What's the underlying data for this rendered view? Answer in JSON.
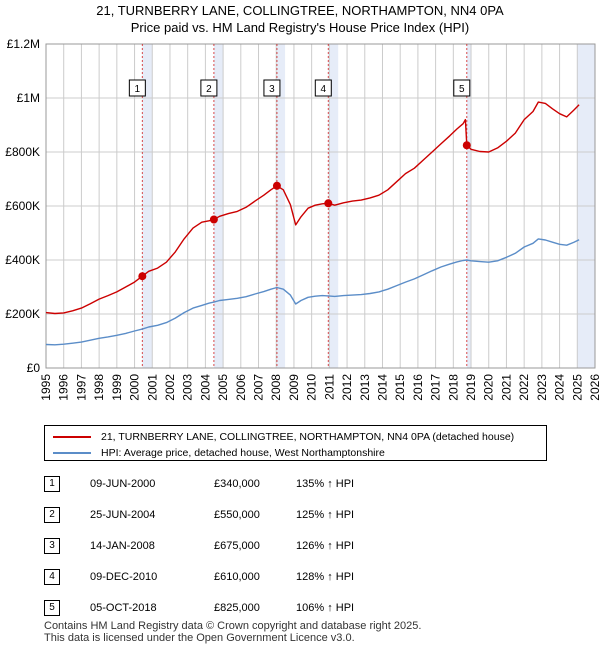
{
  "title_line1": "21, TURNBERRY LANE, COLLINGTREE, NORTHAMPTON, NN4 0PA",
  "title_line2": "Price paid vs. HM Land Registry's House Price Index (HPI)",
  "colors": {
    "property": "#cc0000",
    "hpi": "#5b8dc8",
    "band": "#e6ecf8",
    "grid": "#cccccc",
    "marker": "#cc0000"
  },
  "chart_data": {
    "type": "line",
    "title": "Price paid vs. HM Land Registry's House Price Index (HPI)",
    "xlim": [
      1995,
      2026
    ],
    "ylim": [
      0,
      1200000
    ],
    "x_ticks": [
      "1995",
      "1996",
      "1997",
      "1998",
      "1999",
      "2000",
      "2001",
      "2002",
      "2003",
      "2004",
      "2005",
      "2006",
      "2007",
      "2008",
      "2009",
      "2010",
      "2011",
      "2012",
      "2013",
      "2014",
      "2015",
      "2016",
      "2017",
      "2018",
      "2019",
      "2020",
      "2021",
      "2022",
      "2023",
      "2024",
      "2025",
      "2026"
    ],
    "y_ticks": [
      {
        "value": 0,
        "label": "£0"
      },
      {
        "value": 200000,
        "label": "£200K"
      },
      {
        "value": 400000,
        "label": "£400K"
      },
      {
        "value": 600000,
        "label": "£600K"
      },
      {
        "value": 800000,
        "label": "£800K"
      },
      {
        "value": 1000000,
        "label": "£1M"
      },
      {
        "value": 1200000,
        "label": "£1.2M"
      }
    ],
    "shaded_bands": [
      [
        2000.44,
        2001.0
      ],
      [
        2004.48,
        2005.0
      ],
      [
        2008.04,
        2008.5
      ],
      [
        2010.94,
        2011.5
      ],
      [
        2018.76,
        2019.0
      ],
      [
        2025.0,
        2026.0
      ]
    ],
    "series": [
      {
        "name": "21, TURNBERRY LANE, COLLINGTREE, NORTHAMPTON, NN4 0PA (detached house)",
        "color": "#cc0000",
        "points": [
          [
            1995.0,
            205000
          ],
          [
            1995.5,
            202000
          ],
          [
            1996.0,
            204000
          ],
          [
            1996.5,
            212000
          ],
          [
            1997.0,
            222000
          ],
          [
            1997.5,
            238000
          ],
          [
            1998.0,
            255000
          ],
          [
            1998.5,
            268000
          ],
          [
            1999.0,
            282000
          ],
          [
            1999.5,
            300000
          ],
          [
            2000.0,
            318000
          ],
          [
            2000.44,
            340000
          ],
          [
            2000.8,
            358000
          ],
          [
            2001.3,
            370000
          ],
          [
            2001.8,
            392000
          ],
          [
            2002.3,
            430000
          ],
          [
            2002.8,
            478000
          ],
          [
            2003.3,
            518000
          ],
          [
            2003.8,
            540000
          ],
          [
            2004.2,
            545000
          ],
          [
            2004.48,
            550000
          ],
          [
            2004.8,
            562000
          ],
          [
            2005.3,
            572000
          ],
          [
            2005.8,
            580000
          ],
          [
            2006.3,
            595000
          ],
          [
            2006.8,
            618000
          ],
          [
            2007.3,
            640000
          ],
          [
            2007.7,
            660000
          ],
          [
            2008.04,
            675000
          ],
          [
            2008.4,
            660000
          ],
          [
            2008.8,
            605000
          ],
          [
            2009.1,
            530000
          ],
          [
            2009.4,
            560000
          ],
          [
            2009.8,
            592000
          ],
          [
            2010.2,
            603000
          ],
          [
            2010.6,
            608000
          ],
          [
            2010.94,
            610000
          ],
          [
            2011.3,
            603000
          ],
          [
            2011.8,
            612000
          ],
          [
            2012.3,
            618000
          ],
          [
            2012.8,
            622000
          ],
          [
            2013.3,
            630000
          ],
          [
            2013.8,
            640000
          ],
          [
            2014.3,
            660000
          ],
          [
            2014.8,
            690000
          ],
          [
            2015.3,
            720000
          ],
          [
            2015.8,
            740000
          ],
          [
            2016.3,
            770000
          ],
          [
            2016.8,
            800000
          ],
          [
            2017.3,
            830000
          ],
          [
            2017.8,
            860000
          ],
          [
            2018.2,
            885000
          ],
          [
            2018.55,
            905000
          ],
          [
            2018.68,
            920000
          ],
          [
            2018.76,
            825000
          ],
          [
            2019.0,
            810000
          ],
          [
            2019.5,
            802000
          ],
          [
            2020.0,
            800000
          ],
          [
            2020.5,
            815000
          ],
          [
            2021.0,
            840000
          ],
          [
            2021.5,
            870000
          ],
          [
            2022.0,
            920000
          ],
          [
            2022.5,
            950000
          ],
          [
            2022.8,
            985000
          ],
          [
            2023.2,
            980000
          ],
          [
            2023.6,
            960000
          ],
          [
            2024.0,
            942000
          ],
          [
            2024.4,
            930000
          ],
          [
            2024.8,
            955000
          ],
          [
            2025.1,
            975000
          ]
        ]
      },
      {
        "name": "HPI: Average price, detached house, West Northamptonshire",
        "color": "#5b8dc8",
        "points": [
          [
            1995.0,
            87000
          ],
          [
            1995.5,
            86000
          ],
          [
            1996.0,
            88000
          ],
          [
            1996.5,
            92000
          ],
          [
            1997.0,
            96000
          ],
          [
            1997.5,
            103000
          ],
          [
            1998.0,
            110000
          ],
          [
            1998.5,
            115000
          ],
          [
            1999.0,
            121000
          ],
          [
            1999.5,
            128000
          ],
          [
            2000.0,
            137000
          ],
          [
            2000.44,
            144000
          ],
          [
            2000.8,
            152000
          ],
          [
            2001.3,
            158000
          ],
          [
            2001.8,
            168000
          ],
          [
            2002.3,
            185000
          ],
          [
            2002.8,
            205000
          ],
          [
            2003.3,
            222000
          ],
          [
            2003.8,
            232000
          ],
          [
            2004.2,
            240000
          ],
          [
            2004.48,
            244000
          ],
          [
            2004.8,
            250000
          ],
          [
            2005.3,
            254000
          ],
          [
            2005.8,
            258000
          ],
          [
            2006.3,
            264000
          ],
          [
            2006.8,
            274000
          ],
          [
            2007.3,
            283000
          ],
          [
            2007.7,
            292000
          ],
          [
            2008.04,
            298000
          ],
          [
            2008.4,
            292000
          ],
          [
            2008.8,
            270000
          ],
          [
            2009.1,
            237000
          ],
          [
            2009.4,
            250000
          ],
          [
            2009.8,
            262000
          ],
          [
            2010.2,
            266000
          ],
          [
            2010.6,
            268000
          ],
          [
            2010.94,
            267000
          ],
          [
            2011.3,
            265000
          ],
          [
            2011.8,
            268000
          ],
          [
            2012.3,
            270000
          ],
          [
            2012.8,
            272000
          ],
          [
            2013.3,
            276000
          ],
          [
            2013.8,
            282000
          ],
          [
            2014.3,
            292000
          ],
          [
            2014.8,
            305000
          ],
          [
            2015.3,
            318000
          ],
          [
            2015.8,
            330000
          ],
          [
            2016.3,
            345000
          ],
          [
            2016.8,
            360000
          ],
          [
            2017.3,
            374000
          ],
          [
            2017.8,
            385000
          ],
          [
            2018.2,
            393000
          ],
          [
            2018.55,
            398000
          ],
          [
            2018.76,
            400000
          ],
          [
            2019.0,
            397000
          ],
          [
            2019.5,
            394000
          ],
          [
            2020.0,
            392000
          ],
          [
            2020.5,
            397000
          ],
          [
            2021.0,
            410000
          ],
          [
            2021.5,
            425000
          ],
          [
            2022.0,
            448000
          ],
          [
            2022.5,
            462000
          ],
          [
            2022.8,
            478000
          ],
          [
            2023.2,
            474000
          ],
          [
            2023.6,
            466000
          ],
          [
            2024.0,
            458000
          ],
          [
            2024.4,
            455000
          ],
          [
            2024.8,
            465000
          ],
          [
            2025.1,
            475000
          ]
        ]
      }
    ],
    "sales": [
      {
        "n": "1",
        "x": 2000.44,
        "price": 340000
      },
      {
        "n": "2",
        "x": 2004.48,
        "price": 550000
      },
      {
        "n": "3",
        "x": 2008.04,
        "price": 675000
      },
      {
        "n": "4",
        "x": 2010.94,
        "price": 610000
      },
      {
        "n": "5",
        "x": 2018.76,
        "price": 825000
      }
    ]
  },
  "legend": {
    "property_label": "21, TURNBERRY LANE, COLLINGTREE, NORTHAMPTON, NN4 0PA (detached house)",
    "hpi_label": "HPI: Average price, detached house, West Northamptonshire"
  },
  "sales_table": [
    {
      "num": "1",
      "date": "09-JUN-2000",
      "price": "£340,000",
      "hpi": "135% ↑ HPI"
    },
    {
      "num": "2",
      "date": "25-JUN-2004",
      "price": "£550,000",
      "hpi": "125% ↑ HPI"
    },
    {
      "num": "3",
      "date": "14-JAN-2008",
      "price": "£675,000",
      "hpi": "126% ↑ HPI"
    },
    {
      "num": "4",
      "date": "09-DEC-2010",
      "price": "£610,000",
      "hpi": "128% ↑ HPI"
    },
    {
      "num": "5",
      "date": "05-OCT-2018",
      "price": "£825,000",
      "hpi": "106% ↑ HPI"
    }
  ],
  "footer": {
    "line1": "Contains HM Land Registry data © Crown copyright and database right 2025.",
    "line2": "This data is licensed under the Open Government Licence v3.0."
  }
}
